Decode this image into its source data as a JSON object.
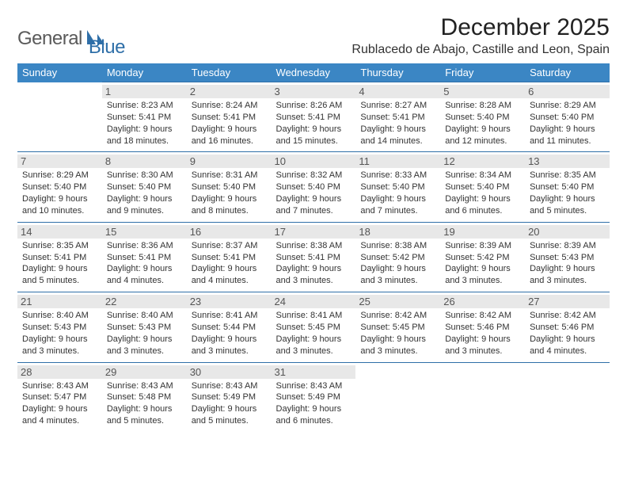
{
  "brand": {
    "name1": "General",
    "name2": "Blue"
  },
  "title": "December 2025",
  "location": "Rublacedo de Abajo, Castille and Leon, Spain",
  "colors": {
    "header_bg": "#3b86c4",
    "border": "#2f6fa8",
    "daynum_bg": "#e8e8e8",
    "text": "#333333"
  },
  "weekdays": [
    "Sunday",
    "Monday",
    "Tuesday",
    "Wednesday",
    "Thursday",
    "Friday",
    "Saturday"
  ],
  "weeks": [
    [
      null,
      {
        "n": "1",
        "sr": "Sunrise: 8:23 AM",
        "ss": "Sunset: 5:41 PM",
        "d1": "Daylight: 9 hours",
        "d2": "and 18 minutes."
      },
      {
        "n": "2",
        "sr": "Sunrise: 8:24 AM",
        "ss": "Sunset: 5:41 PM",
        "d1": "Daylight: 9 hours",
        "d2": "and 16 minutes."
      },
      {
        "n": "3",
        "sr": "Sunrise: 8:26 AM",
        "ss": "Sunset: 5:41 PM",
        "d1": "Daylight: 9 hours",
        "d2": "and 15 minutes."
      },
      {
        "n": "4",
        "sr": "Sunrise: 8:27 AM",
        "ss": "Sunset: 5:41 PM",
        "d1": "Daylight: 9 hours",
        "d2": "and 14 minutes."
      },
      {
        "n": "5",
        "sr": "Sunrise: 8:28 AM",
        "ss": "Sunset: 5:40 PM",
        "d1": "Daylight: 9 hours",
        "d2": "and 12 minutes."
      },
      {
        "n": "6",
        "sr": "Sunrise: 8:29 AM",
        "ss": "Sunset: 5:40 PM",
        "d1": "Daylight: 9 hours",
        "d2": "and 11 minutes."
      }
    ],
    [
      {
        "n": "7",
        "sr": "Sunrise: 8:29 AM",
        "ss": "Sunset: 5:40 PM",
        "d1": "Daylight: 9 hours",
        "d2": "and 10 minutes."
      },
      {
        "n": "8",
        "sr": "Sunrise: 8:30 AM",
        "ss": "Sunset: 5:40 PM",
        "d1": "Daylight: 9 hours",
        "d2": "and 9 minutes."
      },
      {
        "n": "9",
        "sr": "Sunrise: 8:31 AM",
        "ss": "Sunset: 5:40 PM",
        "d1": "Daylight: 9 hours",
        "d2": "and 8 minutes."
      },
      {
        "n": "10",
        "sr": "Sunrise: 8:32 AM",
        "ss": "Sunset: 5:40 PM",
        "d1": "Daylight: 9 hours",
        "d2": "and 7 minutes."
      },
      {
        "n": "11",
        "sr": "Sunrise: 8:33 AM",
        "ss": "Sunset: 5:40 PM",
        "d1": "Daylight: 9 hours",
        "d2": "and 7 minutes."
      },
      {
        "n": "12",
        "sr": "Sunrise: 8:34 AM",
        "ss": "Sunset: 5:40 PM",
        "d1": "Daylight: 9 hours",
        "d2": "and 6 minutes."
      },
      {
        "n": "13",
        "sr": "Sunrise: 8:35 AM",
        "ss": "Sunset: 5:40 PM",
        "d1": "Daylight: 9 hours",
        "d2": "and 5 minutes."
      }
    ],
    [
      {
        "n": "14",
        "sr": "Sunrise: 8:35 AM",
        "ss": "Sunset: 5:41 PM",
        "d1": "Daylight: 9 hours",
        "d2": "and 5 minutes."
      },
      {
        "n": "15",
        "sr": "Sunrise: 8:36 AM",
        "ss": "Sunset: 5:41 PM",
        "d1": "Daylight: 9 hours",
        "d2": "and 4 minutes."
      },
      {
        "n": "16",
        "sr": "Sunrise: 8:37 AM",
        "ss": "Sunset: 5:41 PM",
        "d1": "Daylight: 9 hours",
        "d2": "and 4 minutes."
      },
      {
        "n": "17",
        "sr": "Sunrise: 8:38 AM",
        "ss": "Sunset: 5:41 PM",
        "d1": "Daylight: 9 hours",
        "d2": "and 3 minutes."
      },
      {
        "n": "18",
        "sr": "Sunrise: 8:38 AM",
        "ss": "Sunset: 5:42 PM",
        "d1": "Daylight: 9 hours",
        "d2": "and 3 minutes."
      },
      {
        "n": "19",
        "sr": "Sunrise: 8:39 AM",
        "ss": "Sunset: 5:42 PM",
        "d1": "Daylight: 9 hours",
        "d2": "and 3 minutes."
      },
      {
        "n": "20",
        "sr": "Sunrise: 8:39 AM",
        "ss": "Sunset: 5:43 PM",
        "d1": "Daylight: 9 hours",
        "d2": "and 3 minutes."
      }
    ],
    [
      {
        "n": "21",
        "sr": "Sunrise: 8:40 AM",
        "ss": "Sunset: 5:43 PM",
        "d1": "Daylight: 9 hours",
        "d2": "and 3 minutes."
      },
      {
        "n": "22",
        "sr": "Sunrise: 8:40 AM",
        "ss": "Sunset: 5:43 PM",
        "d1": "Daylight: 9 hours",
        "d2": "and 3 minutes."
      },
      {
        "n": "23",
        "sr": "Sunrise: 8:41 AM",
        "ss": "Sunset: 5:44 PM",
        "d1": "Daylight: 9 hours",
        "d2": "and 3 minutes."
      },
      {
        "n": "24",
        "sr": "Sunrise: 8:41 AM",
        "ss": "Sunset: 5:45 PM",
        "d1": "Daylight: 9 hours",
        "d2": "and 3 minutes."
      },
      {
        "n": "25",
        "sr": "Sunrise: 8:42 AM",
        "ss": "Sunset: 5:45 PM",
        "d1": "Daylight: 9 hours",
        "d2": "and 3 minutes."
      },
      {
        "n": "26",
        "sr": "Sunrise: 8:42 AM",
        "ss": "Sunset: 5:46 PM",
        "d1": "Daylight: 9 hours",
        "d2": "and 3 minutes."
      },
      {
        "n": "27",
        "sr": "Sunrise: 8:42 AM",
        "ss": "Sunset: 5:46 PM",
        "d1": "Daylight: 9 hours",
        "d2": "and 4 minutes."
      }
    ],
    [
      {
        "n": "28",
        "sr": "Sunrise: 8:43 AM",
        "ss": "Sunset: 5:47 PM",
        "d1": "Daylight: 9 hours",
        "d2": "and 4 minutes."
      },
      {
        "n": "29",
        "sr": "Sunrise: 8:43 AM",
        "ss": "Sunset: 5:48 PM",
        "d1": "Daylight: 9 hours",
        "d2": "and 5 minutes."
      },
      {
        "n": "30",
        "sr": "Sunrise: 8:43 AM",
        "ss": "Sunset: 5:49 PM",
        "d1": "Daylight: 9 hours",
        "d2": "and 5 minutes."
      },
      {
        "n": "31",
        "sr": "Sunrise: 8:43 AM",
        "ss": "Sunset: 5:49 PM",
        "d1": "Daylight: 9 hours",
        "d2": "and 6 minutes."
      },
      null,
      null,
      null
    ]
  ]
}
